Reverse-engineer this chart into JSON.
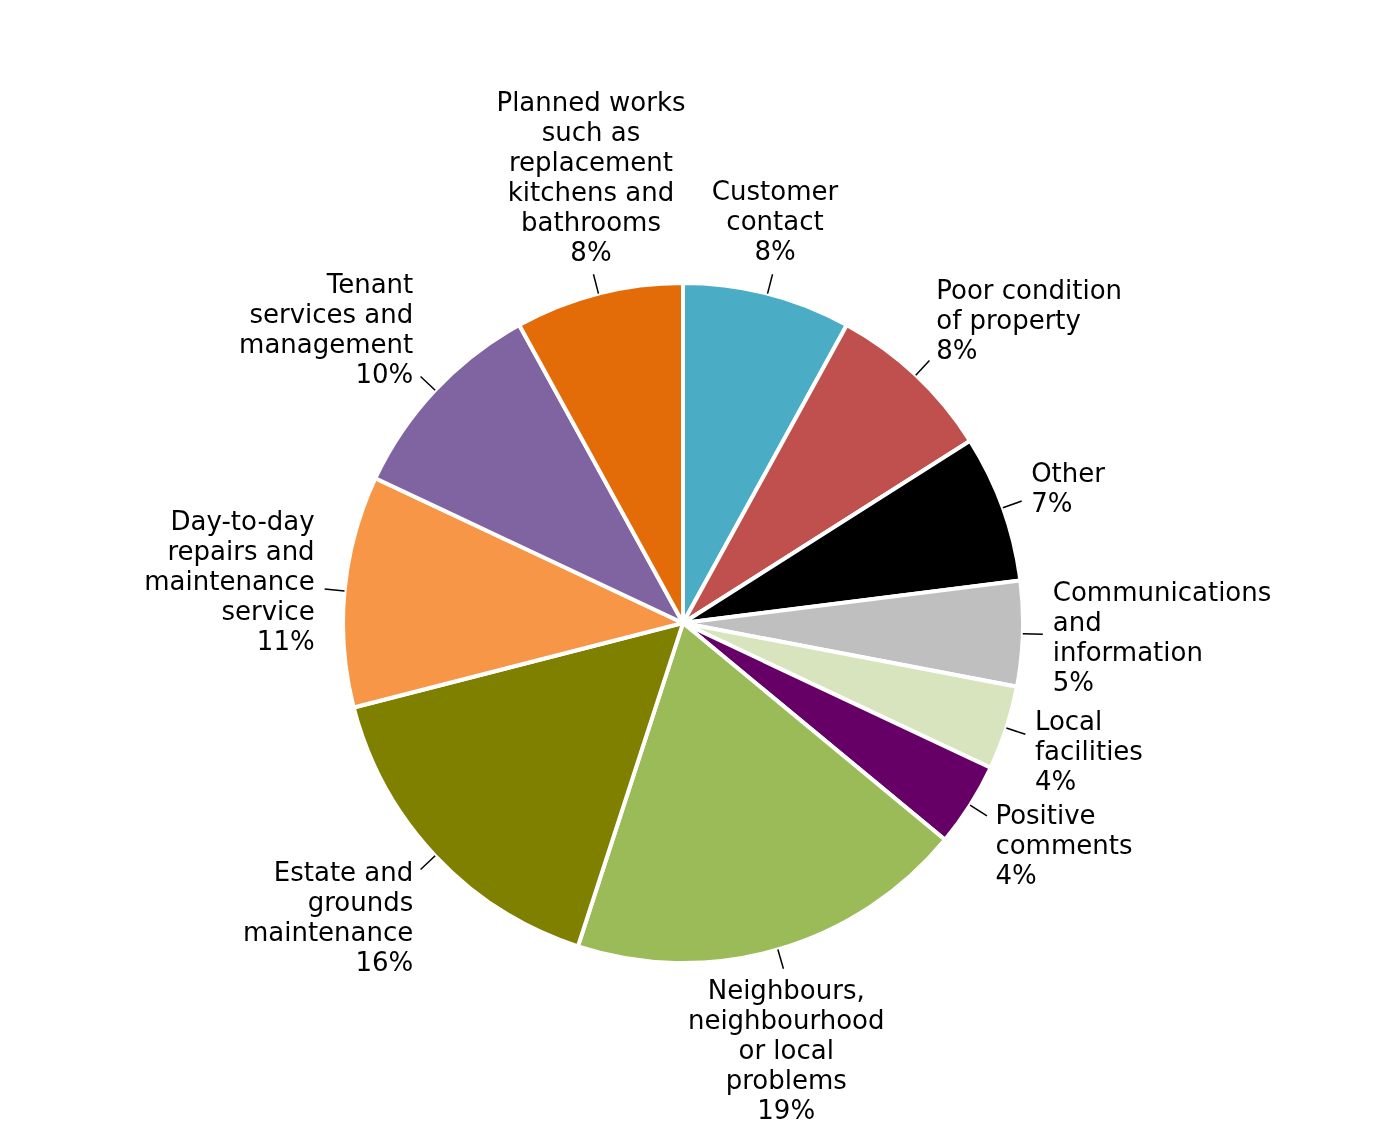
{
  "chart_data": {
    "type": "pie",
    "categories": [
      "Customer contact",
      "Poor condition of property",
      "Other",
      "Communications and information",
      "Local facilities",
      "Positive comments",
      "Neighbours, neighbourhood or local problems",
      "Estate and grounds maintenance",
      "Day-to-day repairs and maintenance service",
      "Tenant services and management",
      "Planned works such as replacement kitchens and bathrooms"
    ],
    "values": [
      8,
      8,
      7,
      5,
      4,
      4,
      19,
      16,
      11,
      10,
      8
    ],
    "value_labels": [
      "8%",
      "8%",
      "7%",
      "5%",
      "4%",
      "4%",
      "19%",
      "16%",
      "11%",
      "10%",
      "8%"
    ],
    "colors": [
      "#4bacc6",
      "#c0504d",
      "#000000",
      "#bfbfbf",
      "#d7e4bd",
      "#660066",
      "#9bbb59",
      "#7f7f00",
      "#f79646",
      "#8064a2",
      "#e36c09"
    ]
  }
}
